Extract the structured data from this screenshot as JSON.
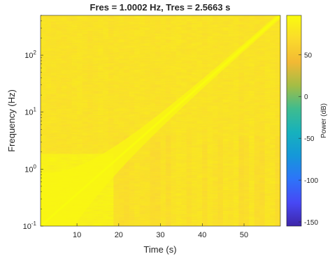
{
  "chart_data": {
    "type": "heatmap",
    "title": "Fres = 1.0002 Hz, Tres = 2.5663 s",
    "xlabel": "Time (s)",
    "ylabel": "Frequency (Hz)",
    "xlim": [
      1.28,
      58.7
    ],
    "ylim": [
      0.1,
      500
    ],
    "yscale": "log",
    "xticks": [
      10,
      20,
      30,
      40,
      50
    ],
    "yticks": [
      {
        "value": 0.1,
        "base": "10",
        "exp": "-1"
      },
      {
        "value": 1,
        "base": "10",
        "exp": "0"
      },
      {
        "value": 10,
        "base": "10",
        "exp": "1"
      },
      {
        "value": 100,
        "base": "10",
        "exp": "2"
      }
    ],
    "colorbar": {
      "label": "Power (dB)",
      "limits": [
        -155,
        97
      ],
      "ticks": [
        50,
        0,
        -50,
        -100,
        -150
      ],
      "colormap": [
        "#3e26a8",
        "#4748f5",
        "#2d74f9",
        "#1597d9",
        "#16b1bd",
        "#3ebc8f",
        "#a3bd45",
        "#f2b934",
        "#fbdb2b",
        "#f9fb0e"
      ]
    },
    "background_level_db": 78,
    "chirp": {
      "description": "log-frequency sweep, high power ridge",
      "t_start": 1.28,
      "f_start": 0.1,
      "t_end": 58.7,
      "f_end": 500,
      "ridge_level_db": 97
    }
  }
}
